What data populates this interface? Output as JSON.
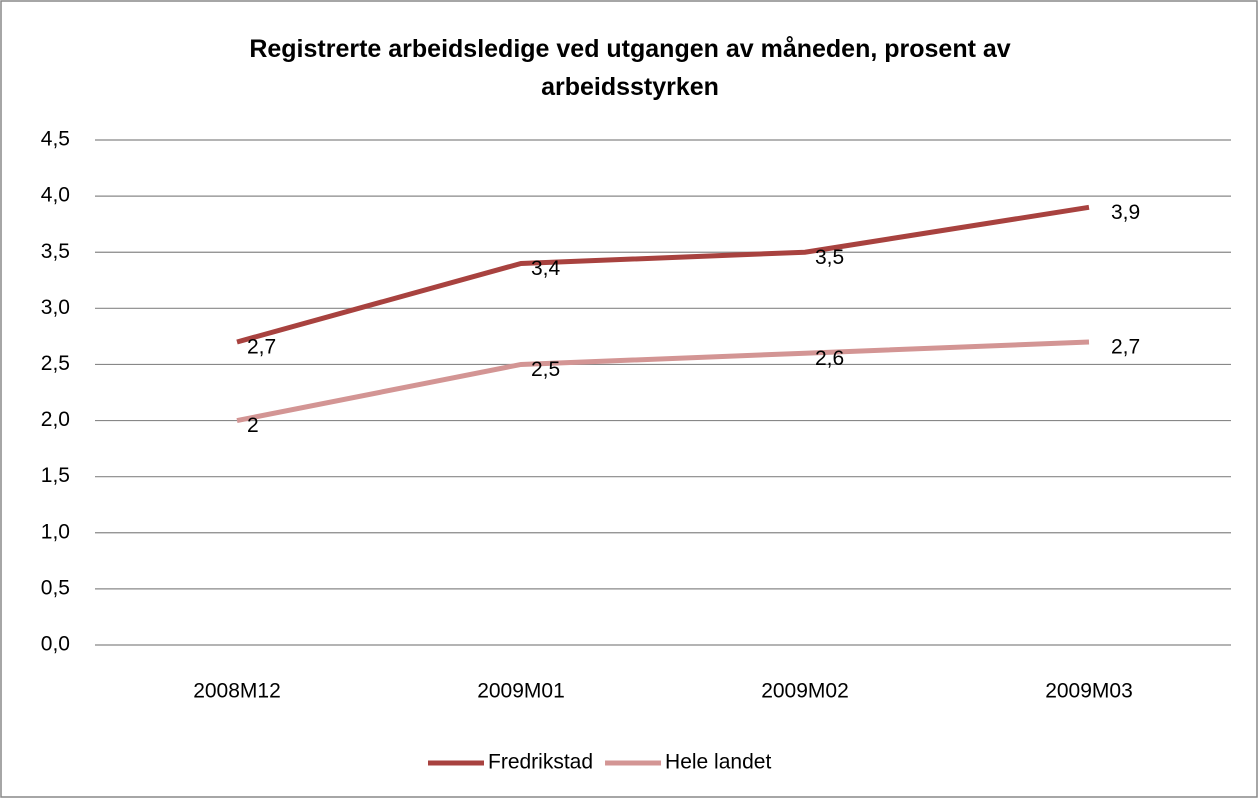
{
  "chart_data": {
    "type": "line",
    "title": "Registrerte arbeidsledige ved utgangen av måneden, prosent av arbeidsstyrken",
    "categories": [
      "2008M12",
      "2009M01",
      "2009M02",
      "2009M03"
    ],
    "series": [
      {
        "name": "Fredrikstad",
        "color": "#a8423f",
        "values": [
          2.7,
          3.4,
          3.5,
          3.9
        ],
        "value_labels": [
          "2,7",
          "3,4",
          "3,5",
          "3,9"
        ]
      },
      {
        "name": "Hele landet",
        "color": "#d39594",
        "values": [
          2,
          2.5,
          2.6,
          2.7
        ],
        "value_labels": [
          "2",
          "2,5",
          "2,6",
          "2,7"
        ]
      }
    ],
    "ylim": [
      0,
      4.5
    ],
    "yticks": [
      {
        "value": 0,
        "label": "0,0"
      },
      {
        "value": 0.5,
        "label": "0,5"
      },
      {
        "value": 1,
        "label": "1,0"
      },
      {
        "value": 1.5,
        "label": "1,5"
      },
      {
        "value": 2,
        "label": "2,0"
      },
      {
        "value": 2.5,
        "label": "2,5"
      },
      {
        "value": 3,
        "label": "3,0"
      },
      {
        "value": 3.5,
        "label": "3,5"
      },
      {
        "value": 4,
        "label": "4,0"
      },
      {
        "value": 4.5,
        "label": "4,5"
      }
    ],
    "grid": true,
    "legend": "bottom"
  }
}
